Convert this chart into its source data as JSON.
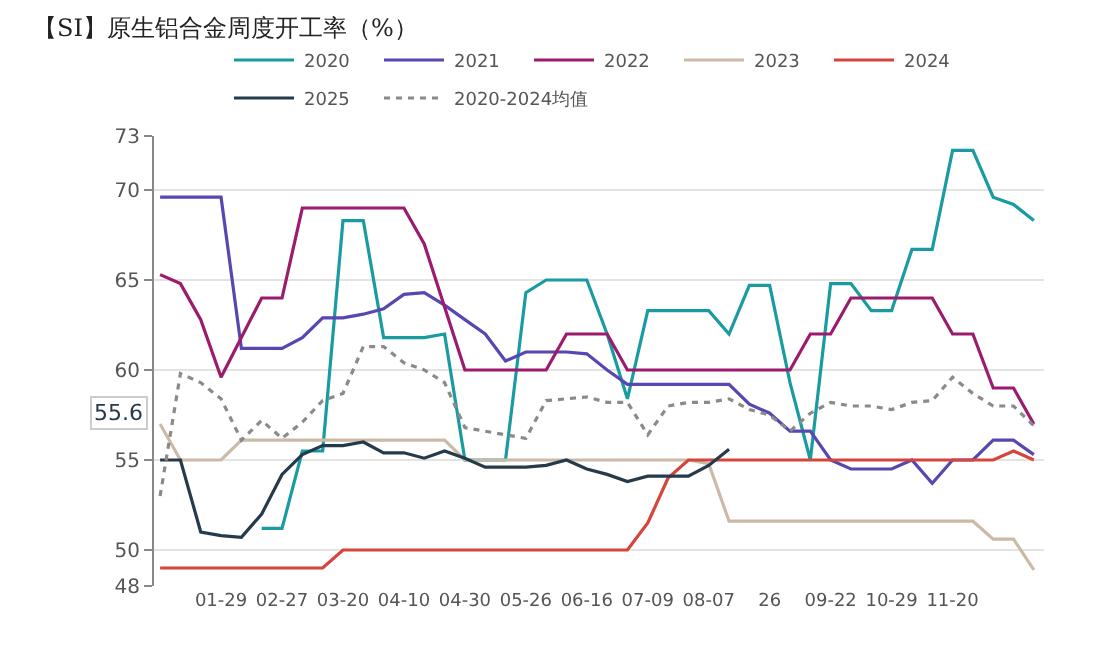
{
  "chart_data": {
    "type": "line",
    "title": "【SI】原生铝合金周度开工率（%）",
    "categories": [
      null,
      null,
      null,
      "01-29",
      null,
      null,
      "02-27",
      null,
      null,
      "03-20",
      null,
      null,
      "04-10",
      null,
      null,
      "04-30",
      null,
      null,
      "05-26",
      null,
      null,
      "06-16",
      null,
      null,
      "07-09",
      null,
      null,
      "08-07",
      null,
      null,
      "26",
      null,
      null,
      "09-22",
      null,
      null,
      "10-29",
      null,
      null,
      "11-20",
      null,
      null,
      null,
      null
    ],
    "series": [
      {
        "name": "2020",
        "color": "#1a9ba1",
        "values": [
          null,
          null,
          null,
          null,
          null,
          51.2,
          51.2,
          55.5,
          55.5,
          68.3,
          68.3,
          61.8,
          61.8,
          61.8,
          62.0,
          55.0,
          55.0,
          55.0,
          64.3,
          65.0,
          65.0,
          65.0,
          62.0,
          58.4,
          63.3,
          63.3,
          63.3,
          63.3,
          62.0,
          64.7,
          64.7,
          59.3,
          55.0,
          64.8,
          64.8,
          63.3,
          63.3,
          66.7,
          66.7,
          72.2,
          72.2,
          69.6,
          69.2,
          68.3
        ]
      },
      {
        "name": "2021",
        "color": "#5a46b0",
        "values": [
          69.6,
          69.6,
          69.6,
          69.6,
          61.2,
          61.2,
          61.2,
          61.8,
          62.9,
          62.9,
          63.1,
          63.4,
          64.2,
          64.3,
          63.6,
          62.8,
          62.0,
          60.5,
          61.0,
          61.0,
          61.0,
          60.9,
          60.0,
          59.2,
          59.2,
          59.2,
          59.2,
          59.2,
          59.2,
          58.1,
          57.6,
          56.6,
          56.6,
          55.0,
          54.5,
          54.5,
          54.5,
          55.0,
          53.7,
          55.0,
          55.0,
          56.1,
          56.1,
          55.3
        ]
      },
      {
        "name": "2022",
        "color": "#9b1b6e",
        "values": [
          65.3,
          64.8,
          62.8,
          59.6,
          61.8,
          64.0,
          64.0,
          69.0,
          69.0,
          69.0,
          69.0,
          69.0,
          69.0,
          67.0,
          63.5,
          60.0,
          60.0,
          60.0,
          60.0,
          60.0,
          62.0,
          62.0,
          62.0,
          60.0,
          60.0,
          60.0,
          60.0,
          60.0,
          60.0,
          60.0,
          60.0,
          60.0,
          62.0,
          62.0,
          64.0,
          64.0,
          64.0,
          64.0,
          64.0,
          62.0,
          62.0,
          59.0,
          59.0,
          57.0
        ]
      },
      {
        "name": "2023",
        "color": "#cbbba6",
        "values": [
          57.0,
          55.0,
          55.0,
          55.0,
          56.1,
          56.1,
          56.1,
          56.1,
          56.1,
          56.1,
          56.1,
          56.1,
          56.1,
          56.1,
          56.1,
          55.0,
          55.0,
          55.0,
          55.0,
          55.0,
          55.0,
          55.0,
          55.0,
          55.0,
          55.0,
          55.0,
          55.0,
          54.8,
          51.6,
          51.6,
          51.6,
          51.6,
          51.6,
          51.6,
          51.6,
          51.6,
          51.6,
          51.6,
          51.6,
          51.6,
          51.6,
          50.6,
          50.6,
          48.9
        ]
      },
      {
        "name": "2024",
        "color": "#d6453c",
        "values": [
          49.0,
          49.0,
          49.0,
          49.0,
          49.0,
          49.0,
          49.0,
          49.0,
          49.0,
          50.0,
          50.0,
          50.0,
          50.0,
          50.0,
          50.0,
          50.0,
          50.0,
          50.0,
          50.0,
          50.0,
          50.0,
          50.0,
          50.0,
          50.0,
          51.5,
          54.0,
          55.0,
          55.0,
          55.0,
          55.0,
          55.0,
          55.0,
          55.0,
          55.0,
          55.0,
          55.0,
          55.0,
          55.0,
          55.0,
          55.0,
          55.0,
          55.0,
          55.5,
          55.0
        ]
      },
      {
        "name": "2025",
        "color": "#253a4b",
        "values": [
          55.0,
          55.0,
          51.0,
          50.8,
          50.7,
          52.0,
          54.2,
          55.3,
          55.8,
          55.8,
          56.0,
          55.4,
          55.4,
          55.1,
          55.5,
          55.1,
          54.6,
          54.6,
          54.6,
          54.7,
          55.0,
          54.5,
          54.2,
          53.8,
          54.1,
          54.1,
          54.1,
          54.7,
          55.6,
          null,
          null,
          null,
          null,
          null,
          null,
          null,
          null,
          null,
          null,
          null,
          null,
          null,
          null,
          null
        ]
      },
      {
        "name": "2020-2024均值",
        "color": "#8a8a8a",
        "line_style": "dotted",
        "values": [
          53.0,
          59.8,
          59.3,
          58.4,
          56.1,
          57.2,
          56.2,
          57.1,
          58.3,
          58.7,
          61.3,
          61.3,
          60.4,
          60.0,
          59.3,
          56.8,
          56.6,
          56.4,
          56.2,
          58.3,
          58.4,
          58.5,
          58.2,
          58.2,
          56.4,
          58.0,
          58.2,
          58.2,
          58.4,
          57.8,
          57.5,
          56.6,
          57.6,
          58.2,
          58.0,
          58.0,
          57.8,
          58.2,
          58.3,
          59.6,
          58.7,
          58.0,
          58.0,
          56.9
        ]
      }
    ],
    "ylim": [
      48,
      73
    ],
    "yticks": [
      48,
      50,
      55,
      60,
      65,
      70,
      73
    ],
    "grid": "y",
    "legend": "top",
    "marker": "none",
    "line_style": "solid",
    "annotations": [
      "55.6"
    ]
  }
}
